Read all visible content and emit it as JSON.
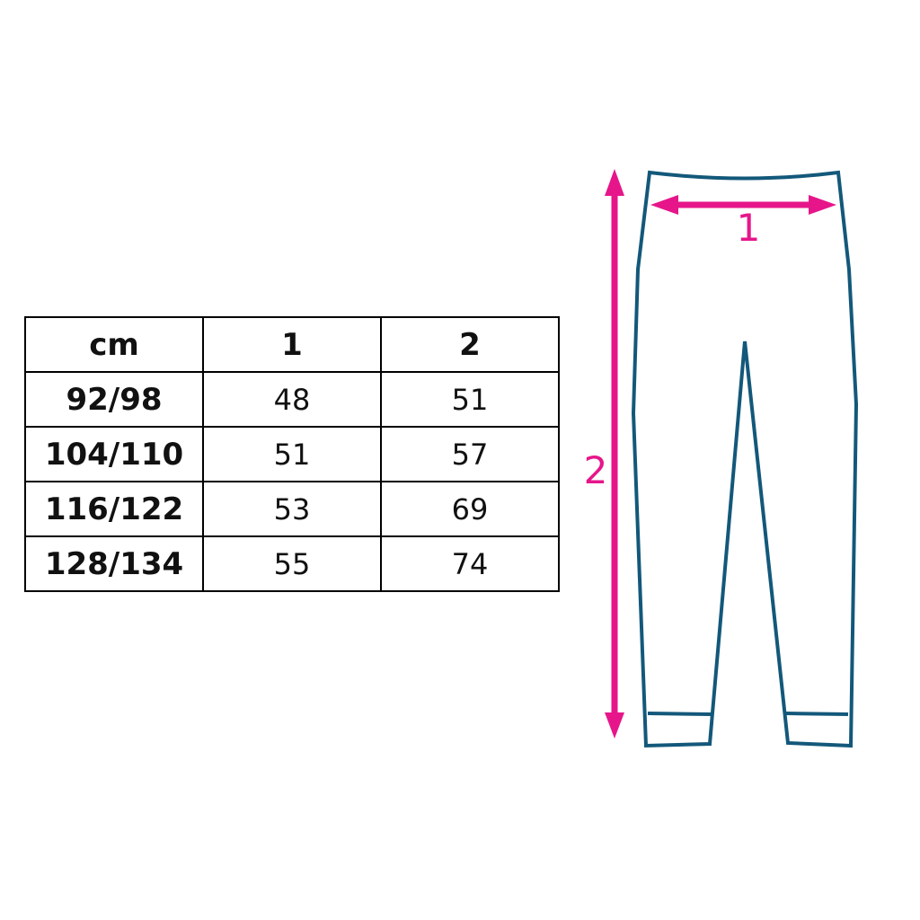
{
  "table": {
    "headers": [
      "cm",
      "1",
      "2"
    ],
    "rows": [
      {
        "size": "92/98",
        "m1": "48",
        "m2": "51"
      },
      {
        "size": "104/110",
        "m1": "51",
        "m2": "57"
      },
      {
        "size": "116/122",
        "m1": "53",
        "m2": "69"
      },
      {
        "size": "128/134",
        "m1": "55",
        "m2": "74"
      }
    ]
  },
  "diagram": {
    "width_label": "1",
    "length_label": "2",
    "arrow_color": "#e6168a",
    "garment_color": "#13587a"
  }
}
